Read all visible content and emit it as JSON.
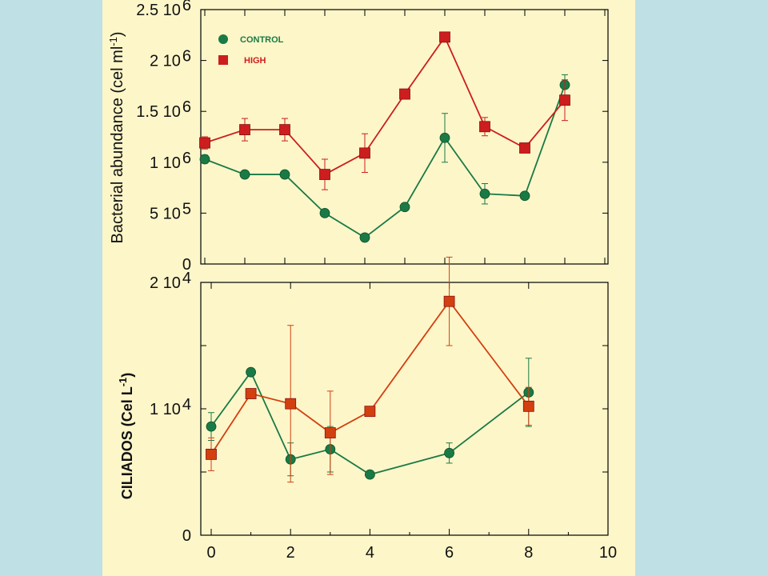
{
  "colors": {
    "background": "#bfe0e4",
    "panel": "#fdf6c9",
    "control": "#1a7a45",
    "high_top": "#cc1e1e",
    "high_bottom": "#d24010",
    "axis": "#000000"
  },
  "chart_data": [
    {
      "type": "line",
      "ylabel": "Bacterial abundance (cel ml",
      "ylabel_sup": "-1",
      "ylabel_close": ")",
      "xlim": [
        0,
        10
      ],
      "ylim": [
        0,
        2500000
      ],
      "x_ticks": [
        0,
        1,
        2,
        3,
        4,
        5,
        6,
        7,
        8,
        9,
        10
      ],
      "y_ticks": [
        0,
        500000,
        1000000,
        1500000,
        2000000,
        2500000
      ],
      "y_tick_labels": [
        {
          "base": "0",
          "exp": ""
        },
        {
          "base": "5 10",
          "exp": "5"
        },
        {
          "base": "1 10",
          "exp": "6"
        },
        {
          "base": "1.5 10",
          "exp": "6"
        },
        {
          "base": "2 10",
          "exp": "6"
        },
        {
          "base": "2.5 10",
          "exp": "6"
        }
      ],
      "legend": {
        "placement": "top-left",
        "entries": [
          "CONTROL",
          "HIGH"
        ]
      },
      "series": [
        {
          "name": "CONTROL",
          "marker": "circle",
          "color_key": "control",
          "x": [
            0,
            1,
            2,
            3,
            4,
            5,
            6,
            7,
            8,
            9
          ],
          "y": [
            1030000,
            880000,
            880000,
            500000,
            260000,
            560000,
            1240000,
            690000,
            670000,
            1760000
          ],
          "err": [
            40000,
            0,
            0,
            0,
            0,
            0,
            240000,
            100000,
            0,
            100000
          ]
        },
        {
          "name": "HIGH",
          "marker": "square",
          "color_key": "high_top",
          "x": [
            0,
            1,
            2,
            3,
            4,
            5,
            6,
            7,
            8,
            9
          ],
          "y": [
            1190000,
            1320000,
            1320000,
            880000,
            1090000,
            1670000,
            2230000,
            1350000,
            1140000,
            1610000
          ],
          "err": [
            60000,
            110000,
            110000,
            150000,
            190000,
            0,
            0,
            90000,
            0,
            200000
          ]
        }
      ]
    },
    {
      "type": "line",
      "ylabel": "CILIADOS (Cel L",
      "ylabel_sup": "-1",
      "ylabel_close": ")",
      "xlim": [
        0,
        10
      ],
      "ylim": [
        0,
        20000
      ],
      "x_ticks": [
        0,
        2,
        4,
        6,
        8,
        10
      ],
      "x_tick_labels": [
        "0",
        "2",
        "4",
        "6",
        "8",
        "10"
      ],
      "x_minor_ticks": [
        1,
        3,
        5,
        7,
        9
      ],
      "y_ticks": [
        0,
        5000,
        10000,
        15000,
        20000
      ],
      "y_tick_labels": [
        {
          "base": "0",
          "exp": ""
        },
        {
          "base": "",
          "exp": ""
        },
        {
          "base": "1 10",
          "exp": "4"
        },
        {
          "base": "",
          "exp": ""
        },
        {
          "base": "2 10",
          "exp": "4"
        }
      ],
      "series": [
        {
          "name": "CONTROL",
          "marker": "circle",
          "color_key": "control",
          "x": [
            0,
            1,
            2,
            3,
            4,
            6,
            8
          ],
          "y": [
            8600,
            12900,
            6000,
            6800,
            4800,
            6500,
            11300
          ],
          "err": [
            1100,
            0,
            1300,
            1800,
            0,
            800,
            2700
          ]
        },
        {
          "name": "HIGH",
          "marker": "square",
          "color_key": "high_bottom",
          "x": [
            0,
            1,
            2,
            3,
            4,
            6,
            8
          ],
          "y": [
            6400,
            11200,
            10400,
            8100,
            9800,
            18500,
            10200
          ],
          "err": [
            1300,
            0,
            6200,
            3300,
            0,
            3500,
            1500
          ]
        }
      ]
    }
  ]
}
